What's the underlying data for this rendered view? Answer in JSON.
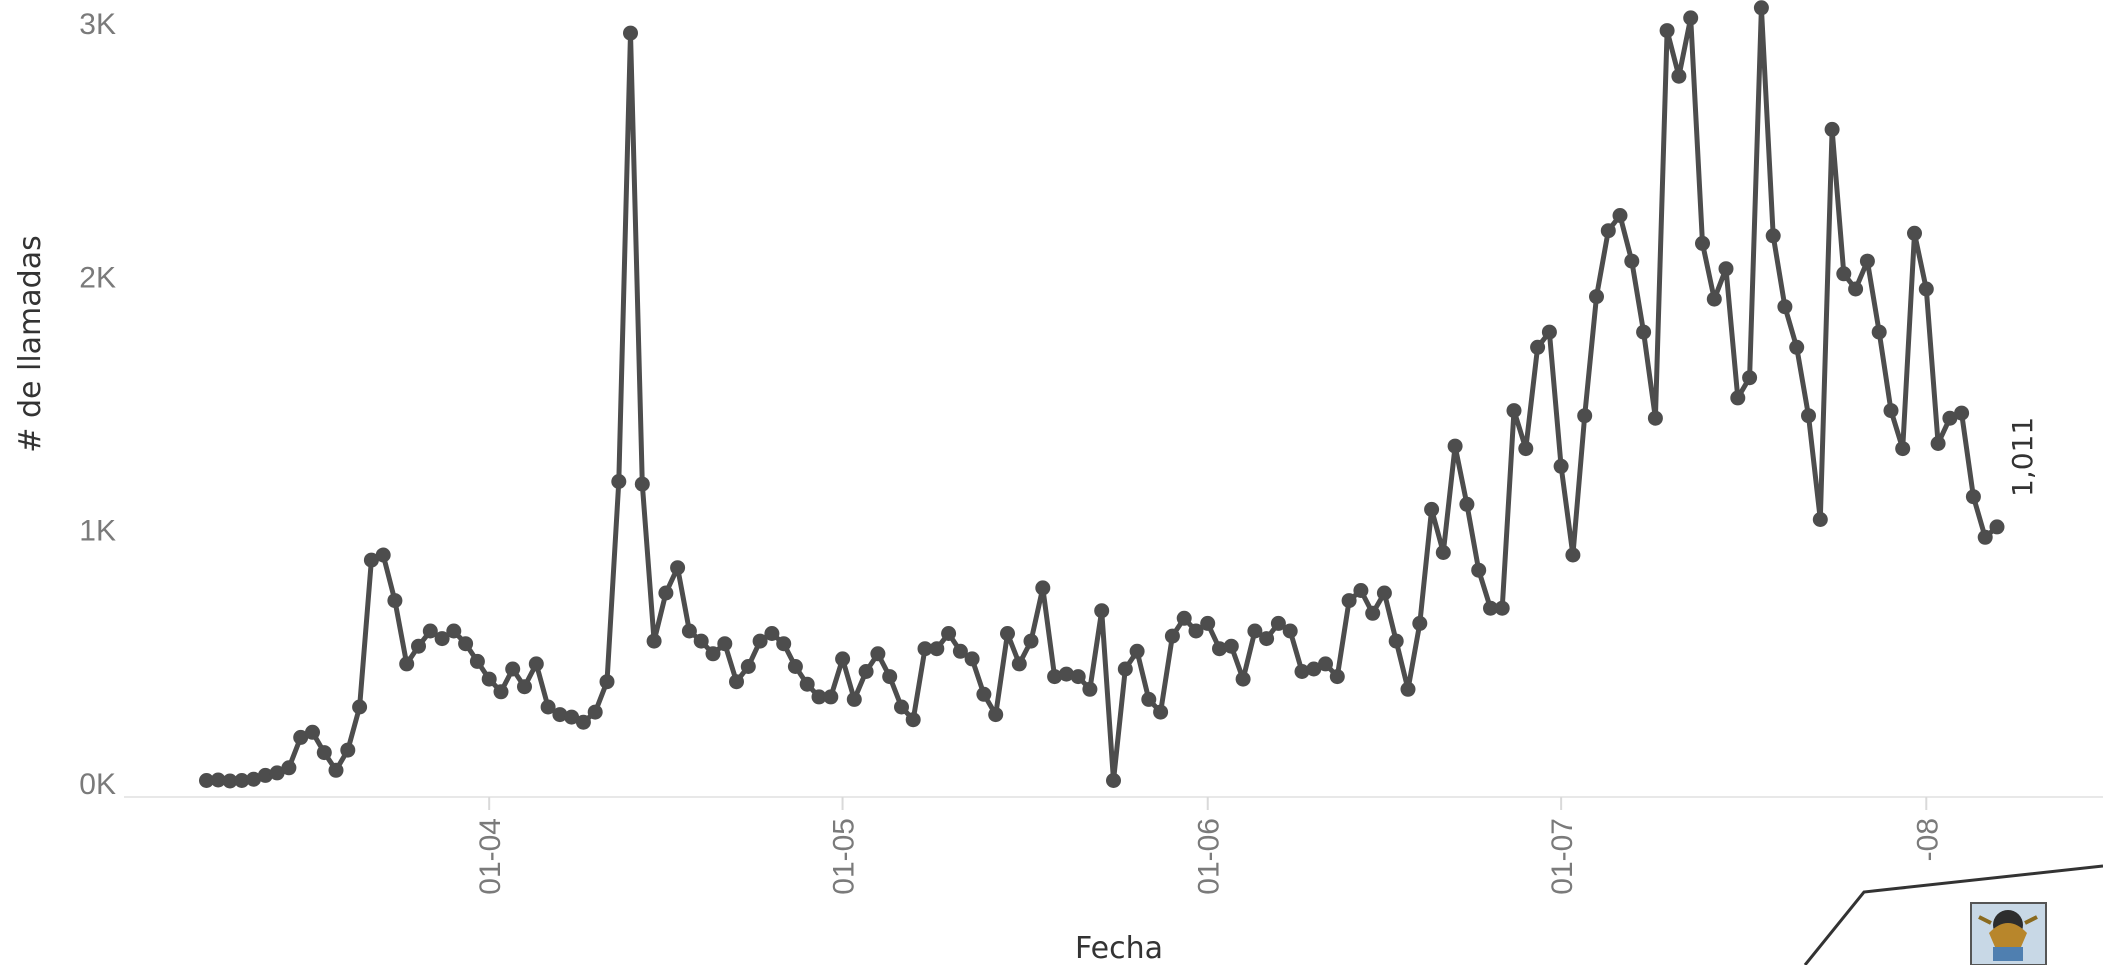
{
  "chart_data": {
    "type": "line",
    "title": "",
    "xlabel": "Fecha",
    "ylabel": "# de llamadas",
    "y_ticks": [
      "0K",
      "1K",
      "2K",
      "3K"
    ],
    "x_ticks": [
      {
        "date": "2020-04-01",
        "label": "01-04"
      },
      {
        "date": "2020-05-01",
        "label": "01-05"
      },
      {
        "date": "2020-06-01",
        "label": "01-06"
      },
      {
        "date": "2020-07-01",
        "label": "01-07"
      },
      {
        "date": "2020-08-01",
        "label": "-08"
      }
    ],
    "ylim": [
      0,
      3000
    ],
    "xlim": [
      "2020-03-01",
      "2020-08-16"
    ],
    "grid": false,
    "legend": "none",
    "series_color": "#4d4d4d",
    "last_value_label": "1,011",
    "series": [
      {
        "points": [
          [
            "2020-03-08",
            10
          ],
          [
            "2020-03-09",
            12
          ],
          [
            "2020-03-10",
            8
          ],
          [
            "2020-03-11",
            10
          ],
          [
            "2020-03-12",
            15
          ],
          [
            "2020-03-13",
            30
          ],
          [
            "2020-03-14",
            40
          ],
          [
            "2020-03-15",
            60
          ],
          [
            "2020-03-16",
            180
          ],
          [
            "2020-03-17",
            200
          ],
          [
            "2020-03-18",
            120
          ],
          [
            "2020-03-19",
            50
          ],
          [
            "2020-03-20",
            130
          ],
          [
            "2020-03-21",
            300
          ],
          [
            "2020-03-22",
            880
          ],
          [
            "2020-03-23",
            900
          ],
          [
            "2020-03-24",
            720
          ],
          [
            "2020-03-25",
            470
          ],
          [
            "2020-03-26",
            540
          ],
          [
            "2020-03-27",
            600
          ],
          [
            "2020-03-28",
            570
          ],
          [
            "2020-03-29",
            600
          ],
          [
            "2020-03-30",
            550
          ],
          [
            "2020-03-31",
            480
          ],
          [
            "2020-04-01",
            410
          ],
          [
            "2020-04-02",
            360
          ],
          [
            "2020-04-03",
            450
          ],
          [
            "2020-04-04",
            380
          ],
          [
            "2020-04-05",
            470
          ],
          [
            "2020-04-06",
            300
          ],
          [
            "2020-04-07",
            270
          ],
          [
            "2020-04-08",
            260
          ],
          [
            "2020-04-09",
            240
          ],
          [
            "2020-04-10",
            280
          ],
          [
            "2020-04-11",
            400
          ],
          [
            "2020-04-12",
            1190
          ],
          [
            "2020-04-13",
            2960
          ],
          [
            "2020-04-14",
            1180
          ],
          [
            "2020-04-15",
            560
          ],
          [
            "2020-04-16",
            750
          ],
          [
            "2020-04-17",
            850
          ],
          [
            "2020-04-18",
            600
          ],
          [
            "2020-04-19",
            560
          ],
          [
            "2020-04-20",
            510
          ],
          [
            "2020-04-21",
            550
          ],
          [
            "2020-04-22",
            400
          ],
          [
            "2020-04-23",
            460
          ],
          [
            "2020-04-24",
            560
          ],
          [
            "2020-04-25",
            590
          ],
          [
            "2020-04-26",
            550
          ],
          [
            "2020-04-27",
            460
          ],
          [
            "2020-04-28",
            390
          ],
          [
            "2020-04-29",
            340
          ],
          [
            "2020-04-30",
            340
          ],
          [
            "2020-05-01",
            490
          ],
          [
            "2020-05-02",
            330
          ],
          [
            "2020-05-03",
            440
          ],
          [
            "2020-05-04",
            510
          ],
          [
            "2020-05-05",
            420
          ],
          [
            "2020-05-06",
            300
          ],
          [
            "2020-05-07",
            250
          ],
          [
            "2020-05-08",
            530
          ],
          [
            "2020-05-09",
            530
          ],
          [
            "2020-05-10",
            590
          ],
          [
            "2020-05-11",
            520
          ],
          [
            "2020-05-12",
            490
          ],
          [
            "2020-05-13",
            350
          ],
          [
            "2020-05-14",
            270
          ],
          [
            "2020-05-15",
            590
          ],
          [
            "2020-05-16",
            470
          ],
          [
            "2020-05-17",
            560
          ],
          [
            "2020-05-18",
            770
          ],
          [
            "2020-05-19",
            420
          ],
          [
            "2020-05-20",
            430
          ],
          [
            "2020-05-21",
            420
          ],
          [
            "2020-05-22",
            370
          ],
          [
            "2020-05-23",
            680
          ],
          [
            "2020-05-24",
            10
          ],
          [
            "2020-05-25",
            450
          ],
          [
            "2020-05-26",
            520
          ],
          [
            "2020-05-27",
            330
          ],
          [
            "2020-05-28",
            280
          ],
          [
            "2020-05-29",
            580
          ],
          [
            "2020-05-30",
            650
          ],
          [
            "2020-05-31",
            600
          ],
          [
            "2020-06-01",
            630
          ],
          [
            "2020-06-02",
            530
          ],
          [
            "2020-06-03",
            540
          ],
          [
            "2020-06-04",
            410
          ],
          [
            "2020-06-05",
            600
          ],
          [
            "2020-06-06",
            570
          ],
          [
            "2020-06-07",
            630
          ],
          [
            "2020-06-08",
            600
          ],
          [
            "2020-06-09",
            440
          ],
          [
            "2020-06-10",
            450
          ],
          [
            "2020-06-11",
            470
          ],
          [
            "2020-06-12",
            420
          ],
          [
            "2020-06-13",
            720
          ],
          [
            "2020-06-14",
            760
          ],
          [
            "2020-06-15",
            670
          ],
          [
            "2020-06-16",
            750
          ],
          [
            "2020-06-17",
            560
          ],
          [
            "2020-06-18",
            370
          ],
          [
            "2020-06-19",
            630
          ],
          [
            "2020-06-20",
            1080
          ],
          [
            "2020-06-21",
            910
          ],
          [
            "2020-06-22",
            1330
          ],
          [
            "2020-06-23",
            1100
          ],
          [
            "2020-06-24",
            840
          ],
          [
            "2020-06-25",
            690
          ],
          [
            "2020-06-26",
            690
          ],
          [
            "2020-06-27",
            1470
          ],
          [
            "2020-06-28",
            1320
          ],
          [
            "2020-06-29",
            1720
          ],
          [
            "2020-06-30",
            1780
          ],
          [
            "2020-07-01",
            1250
          ],
          [
            "2020-07-02",
            900
          ],
          [
            "2020-07-03",
            1450
          ],
          [
            "2020-07-04",
            1920
          ],
          [
            "2020-07-05",
            2180
          ],
          [
            "2020-07-06",
            2240
          ],
          [
            "2020-07-07",
            2060
          ],
          [
            "2020-07-08",
            1780
          ],
          [
            "2020-07-09",
            1440
          ],
          [
            "2020-07-10",
            2970
          ],
          [
            "2020-07-11",
            2790
          ],
          [
            "2020-07-12",
            3020
          ],
          [
            "2020-07-13",
            2130
          ],
          [
            "2020-07-14",
            1910
          ],
          [
            "2020-07-15",
            2030
          ],
          [
            "2020-07-16",
            1520
          ],
          [
            "2020-07-17",
            1600
          ],
          [
            "2020-07-18",
            3060
          ],
          [
            "2020-07-19",
            2160
          ],
          [
            "2020-07-20",
            1880
          ],
          [
            "2020-07-21",
            1720
          ],
          [
            "2020-07-22",
            1450
          ],
          [
            "2020-07-23",
            1040
          ],
          [
            "2020-07-24",
            2580
          ],
          [
            "2020-07-25",
            2010
          ],
          [
            "2020-07-26",
            1950
          ],
          [
            "2020-07-27",
            2060
          ],
          [
            "2020-07-28",
            1780
          ],
          [
            "2020-07-29",
            1470
          ],
          [
            "2020-07-30",
            1320
          ],
          [
            "2020-07-31",
            2170
          ],
          [
            "2020-08-01",
            1950
          ],
          [
            "2020-08-02",
            1340
          ],
          [
            "2020-08-03",
            1440
          ],
          [
            "2020-08-04",
            1460
          ],
          [
            "2020-08-05",
            1130
          ],
          [
            "2020-08-06",
            970
          ],
          [
            "2020-08-07",
            1011
          ]
        ]
      }
    ]
  },
  "decoration": {
    "emblem_icon": "coat-of-arms-icon"
  }
}
